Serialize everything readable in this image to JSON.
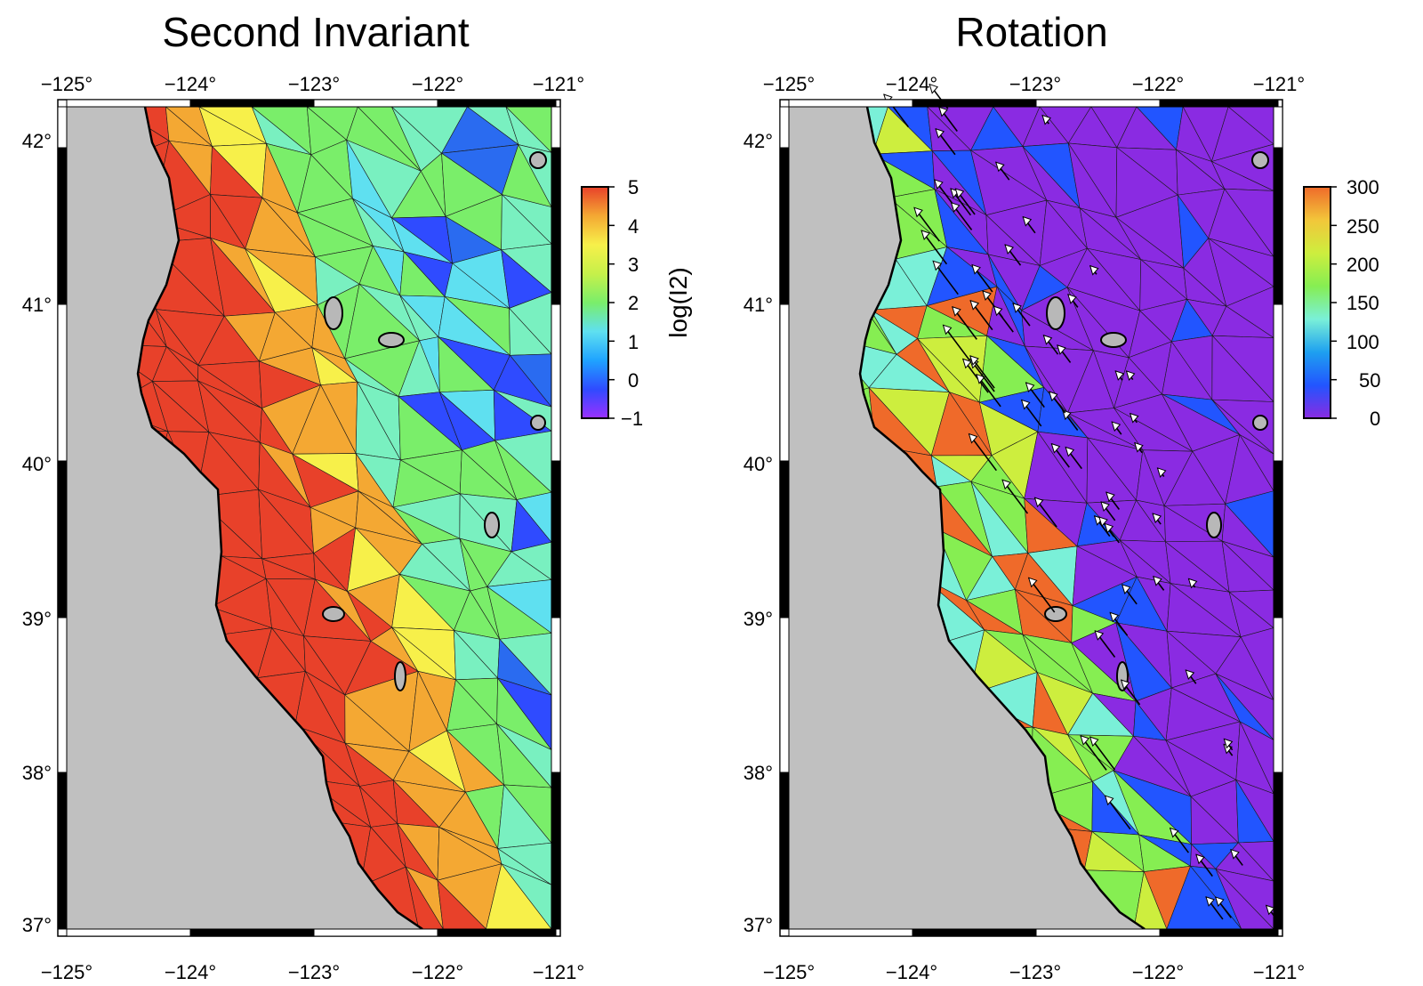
{
  "panels": [
    {
      "id": "left",
      "title": "Second Invariant",
      "x_ticks": [
        "−125°",
        "−124°",
        "−123°",
        "−122°",
        "−121°"
      ],
      "y_ticks": [
        "42°",
        "41°",
        "40°",
        "39°",
        "38°",
        "37°"
      ],
      "colorbar": {
        "label": "log(I2)",
        "ticks": [
          "5",
          "4",
          "3",
          "2",
          "1",
          "0",
          "−1"
        ],
        "range": [
          -1,
          5
        ],
        "stops": [
          "#9b30ff",
          "#2f4bff",
          "#1fa3ff",
          "#5fe0f0",
          "#7aee6a",
          "#c6f04a",
          "#f7f04a",
          "#f4a833",
          "#e8412a"
        ]
      },
      "land_palette": [
        "#e8412a",
        "#f4a833",
        "#f7f04a",
        "#7aee6a",
        "#79f0c0",
        "#5fe0f0",
        "#2f4bff",
        "#2a6bf0"
      ]
    },
    {
      "id": "right",
      "title": "Rotation",
      "x_ticks": [
        "−125°",
        "−124°",
        "−123°",
        "−122°",
        "−121°"
      ],
      "y_ticks": [
        "42°",
        "41°",
        "40°",
        "39°",
        "38°",
        "37°"
      ],
      "colorbar": {
        "label": "",
        "ticks": [
          "300",
          "250",
          "200",
          "150",
          "100",
          "50",
          "0"
        ],
        "range": [
          0,
          300
        ],
        "stops": [
          "#8a2be2",
          "#2255ff",
          "#1ea0f0",
          "#7af0d8",
          "#86ee52",
          "#cdee3e",
          "#f2c63a",
          "#ef6a2a"
        ]
      },
      "land_palette": [
        "#8a2be2",
        "#2255ff",
        "#7af0d8",
        "#86ee52",
        "#cdee3e",
        "#ef6a2a"
      ]
    }
  ],
  "colors": {
    "ocean": "#c0c0c0",
    "frame_dark": "#000000",
    "frame_light": "#ffffff",
    "lake_fill": "#b8b8b8"
  }
}
